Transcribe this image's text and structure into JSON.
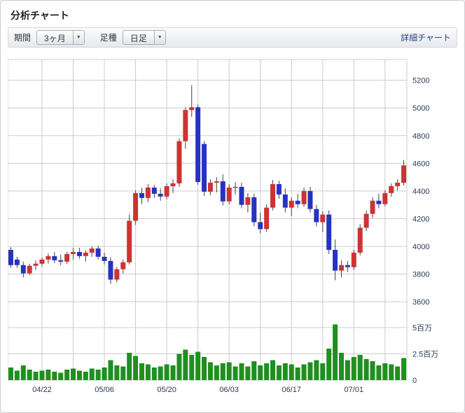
{
  "page": {
    "title": "分析チャート"
  },
  "toolbar": {
    "period_label": "期間",
    "period_value": "3ヶ月",
    "candle_type_label": "足種",
    "candle_type_value": "日足",
    "dropdown_arrow": "▼",
    "detail_link": "詳細チャート"
  },
  "chart_data": {
    "type": "candlestick",
    "title": "分析チャート 日足 3ヶ月",
    "legend_position": "none",
    "grid": true,
    "grid_every": 5,
    "price_axis": {
      "min": 3550,
      "max": 5350,
      "ticks": [
        3600,
        3800,
        4000,
        4200,
        4400,
        4600,
        4800,
        5000,
        5200
      ]
    },
    "volume_axis": {
      "max": 6,
      "ticks": [
        {
          "v": 0,
          "label": "0"
        },
        {
          "v": 2.5,
          "label": "2.5百万"
        },
        {
          "v": 5,
          "label": "5百万"
        }
      ]
    },
    "x_labels": [
      {
        "index": 5,
        "label": "04/22"
      },
      {
        "index": 15,
        "label": "05/06"
      },
      {
        "index": 25,
        "label": "05/20"
      },
      {
        "index": 35,
        "label": "06/03"
      },
      {
        "index": 45,
        "label": "06/17"
      },
      {
        "index": 55,
        "label": "07/01"
      }
    ],
    "colors": {
      "up": "#cc3333",
      "down": "#2633c0",
      "wick": "#444444",
      "volume": "#1f8f1f",
      "grid": "#cccccc",
      "axis_text": "#2b3a55",
      "link": "#26437c"
    },
    "candles_format": [
      "open",
      "high",
      "low",
      "close",
      "volume_millions"
    ],
    "candles": [
      [
        3975,
        3995,
        3845,
        3865,
        1.2
      ],
      [
        3905,
        3925,
        3845,
        3865,
        0.9
      ],
      [
        3865,
        3890,
        3775,
        3805,
        1.4
      ],
      [
        3805,
        3875,
        3795,
        3860,
        1.0
      ],
      [
        3860,
        3900,
        3830,
        3875,
        0.8
      ],
      [
        3875,
        3920,
        3855,
        3905,
        0.9
      ],
      [
        3905,
        3950,
        3875,
        3930,
        1.0
      ],
      [
        3930,
        3960,
        3880,
        3900,
        0.8
      ],
      [
        3900,
        3940,
        3865,
        3890,
        0.7
      ],
      [
        3890,
        3960,
        3875,
        3945,
        1.0
      ],
      [
        3945,
        3990,
        3905,
        3960,
        1.1
      ],
      [
        3960,
        3990,
        3910,
        3930,
        0.9
      ],
      [
        3930,
        3970,
        3890,
        3955,
        0.8
      ],
      [
        3955,
        4000,
        3925,
        3985,
        1.1
      ],
      [
        3985,
        4005,
        3905,
        3925,
        1.0
      ],
      [
        3925,
        3955,
        3870,
        3895,
        1.2
      ],
      [
        3895,
        3920,
        3730,
        3760,
        1.9
      ],
      [
        3760,
        3850,
        3740,
        3835,
        1.4
      ],
      [
        3835,
        3905,
        3805,
        3885,
        1.3
      ],
      [
        3885,
        4230,
        3870,
        4185,
        2.6
      ],
      [
        4185,
        4405,
        4155,
        4385,
        2.3
      ],
      [
        4385,
        4425,
        4305,
        4350,
        1.6
      ],
      [
        4350,
        4450,
        4320,
        4425,
        1.5
      ],
      [
        4425,
        4445,
        4350,
        4380,
        1.2
      ],
      [
        4380,
        4420,
        4330,
        4360,
        1.3
      ],
      [
        4360,
        4455,
        4340,
        4435,
        1.5
      ],
      [
        4435,
        4485,
        4385,
        4455,
        1.4
      ],
      [
        4455,
        4780,
        4430,
        4760,
        2.5
      ],
      [
        4760,
        5005,
        4705,
        4985,
        2.9
      ],
      [
        4985,
        5165,
        4935,
        5005,
        2.4
      ],
      [
        5005,
        5025,
        4445,
        4465,
        2.7
      ],
      [
        4740,
        4760,
        4365,
        4395,
        2.2
      ],
      [
        4395,
        4485,
        4370,
        4460,
        1.7
      ],
      [
        4460,
        4500,
        4390,
        4470,
        1.4
      ],
      [
        4470,
        4520,
        4295,
        4325,
        1.6
      ],
      [
        4325,
        4450,
        4305,
        4425,
        1.7
      ],
      [
        4425,
        4465,
        4375,
        4430,
        1.3
      ],
      [
        4430,
        4460,
        4275,
        4300,
        1.6
      ],
      [
        4300,
        4385,
        4245,
        4355,
        1.3
      ],
      [
        4355,
        4380,
        4145,
        4175,
        1.8
      ],
      [
        4175,
        4245,
        4095,
        4125,
        1.4
      ],
      [
        4125,
        4305,
        4105,
        4280,
        1.6
      ],
      [
        4280,
        4480,
        4260,
        4450,
        1.9
      ],
      [
        4450,
        4475,
        4345,
        4375,
        1.4
      ],
      [
        4375,
        4420,
        4245,
        4280,
        1.6
      ],
      [
        4280,
        4355,
        4220,
        4330,
        1.5
      ],
      [
        4330,
        4380,
        4275,
        4305,
        1.2
      ],
      [
        4305,
        4425,
        4285,
        4400,
        1.5
      ],
      [
        4400,
        4430,
        4245,
        4270,
        1.7
      ],
      [
        4270,
        4300,
        4145,
        4175,
        1.9
      ],
      [
        4175,
        4255,
        4105,
        4230,
        1.6
      ],
      [
        4230,
        4260,
        3945,
        3975,
        3.0
      ],
      [
        3975,
        4050,
        3755,
        3825,
        5.3
      ],
      [
        3825,
        3900,
        3775,
        3865,
        2.6
      ],
      [
        3865,
        3895,
        3815,
        3850,
        1.9
      ],
      [
        3850,
        3975,
        3830,
        3955,
        2.2
      ],
      [
        3955,
        4160,
        3935,
        4135,
        2.4
      ],
      [
        4135,
        4260,
        4110,
        4235,
        2.0
      ],
      [
        4235,
        4355,
        4205,
        4330,
        1.8
      ],
      [
        4330,
        4380,
        4275,
        4305,
        1.4
      ],
      [
        4305,
        4405,
        4290,
        4385,
        1.6
      ],
      [
        4385,
        4455,
        4360,
        4435,
        1.5
      ],
      [
        4435,
        4485,
        4405,
        4460,
        1.3
      ],
      [
        4460,
        4625,
        4440,
        4585,
        2.1
      ]
    ]
  }
}
